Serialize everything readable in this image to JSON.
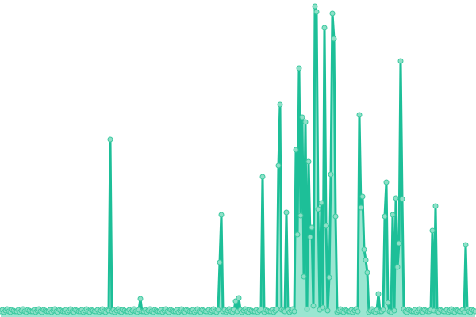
{
  "chart_data": {
    "type": "line",
    "title": "",
    "xlabel": "",
    "ylabel": "",
    "axes_visible": false,
    "grid": false,
    "legend": "none",
    "area_fill": true,
    "markers": true,
    "ylim": [
      0,
      394
    ],
    "colors": {
      "line": "#1dbf98",
      "area": "#8fe3cc",
      "marker_fill": "#8ee0c8",
      "marker_stroke": "#3cc9a0"
    },
    "series": [
      {
        "values": [
          3,
          5,
          2,
          4,
          6,
          3,
          2,
          5,
          4,
          3,
          3,
          5,
          2,
          4,
          6,
          3,
          2,
          5,
          4,
          3,
          3,
          5,
          2,
          4,
          6,
          3,
          2,
          5,
          4,
          3,
          3,
          5,
          2,
          4,
          6,
          3,
          2,
          5,
          4,
          3,
          3,
          5,
          2,
          4,
          6,
          3,
          2,
          5,
          4,
          3,
          3,
          5,
          2,
          4,
          6,
          3,
          2,
          5,
          4,
          3,
          3,
          5,
          2,
          4,
          6,
          3,
          2,
          5,
          4,
          220,
          3,
          5,
          2,
          4,
          6,
          3,
          2,
          5,
          4,
          3,
          3,
          5,
          2,
          4,
          6,
          3,
          2,
          5,
          19,
          3,
          3,
          5,
          2,
          4,
          6,
          3,
          2,
          5,
          4,
          3,
          3,
          5,
          2,
          4,
          6,
          3,
          2,
          5,
          4,
          3,
          3,
          5,
          2,
          4,
          6,
          3,
          2,
          5,
          4,
          3,
          3,
          5,
          2,
          4,
          6,
          3,
          2,
          5,
          4,
          3,
          3,
          5,
          2,
          4,
          6,
          3,
          2,
          5,
          65,
          125,
          3,
          5,
          2,
          4,
          6,
          3,
          2,
          5,
          16,
          3,
          20,
          5,
          2,
          4,
          6,
          3,
          2,
          5,
          4,
          3,
          3,
          5,
          2,
          4,
          6,
          173,
          2,
          5,
          4,
          3,
          3,
          5,
          2,
          4,
          6,
          187,
          264,
          5,
          4,
          3,
          128,
          5,
          2,
          4,
          6,
          3,
          207,
          100,
          310,
          124,
          248,
          47,
          242,
          6,
          192,
          97,
          109,
          10,
          388,
          381,
          132,
          5,
          140,
          8,
          361,
          111,
          4,
          46,
          176,
          379,
          347,
          123,
          2,
          4,
          6,
          3,
          2,
          5,
          4,
          3,
          3,
          5,
          2,
          4,
          6,
          3,
          251,
          134,
          148,
          81,
          68,
          52,
          2,
          4,
          6,
          3,
          2,
          5,
          25,
          3,
          3,
          5,
          123,
          166,
          14,
          3,
          2,
          125,
          4,
          146,
          59,
          89,
          319,
          145,
          6,
          3,
          2,
          5,
          4,
          3,
          3,
          5,
          2,
          4,
          6,
          3,
          2,
          5,
          4,
          3,
          3,
          5,
          105,
          4,
          136,
          3,
          2,
          5,
          4,
          3,
          3,
          5,
          2,
          4,
          6,
          3,
          2,
          5,
          4,
          3,
          3,
          5,
          2,
          87,
          6,
          3,
          2,
          5,
          4,
          3
        ]
      }
    ]
  }
}
